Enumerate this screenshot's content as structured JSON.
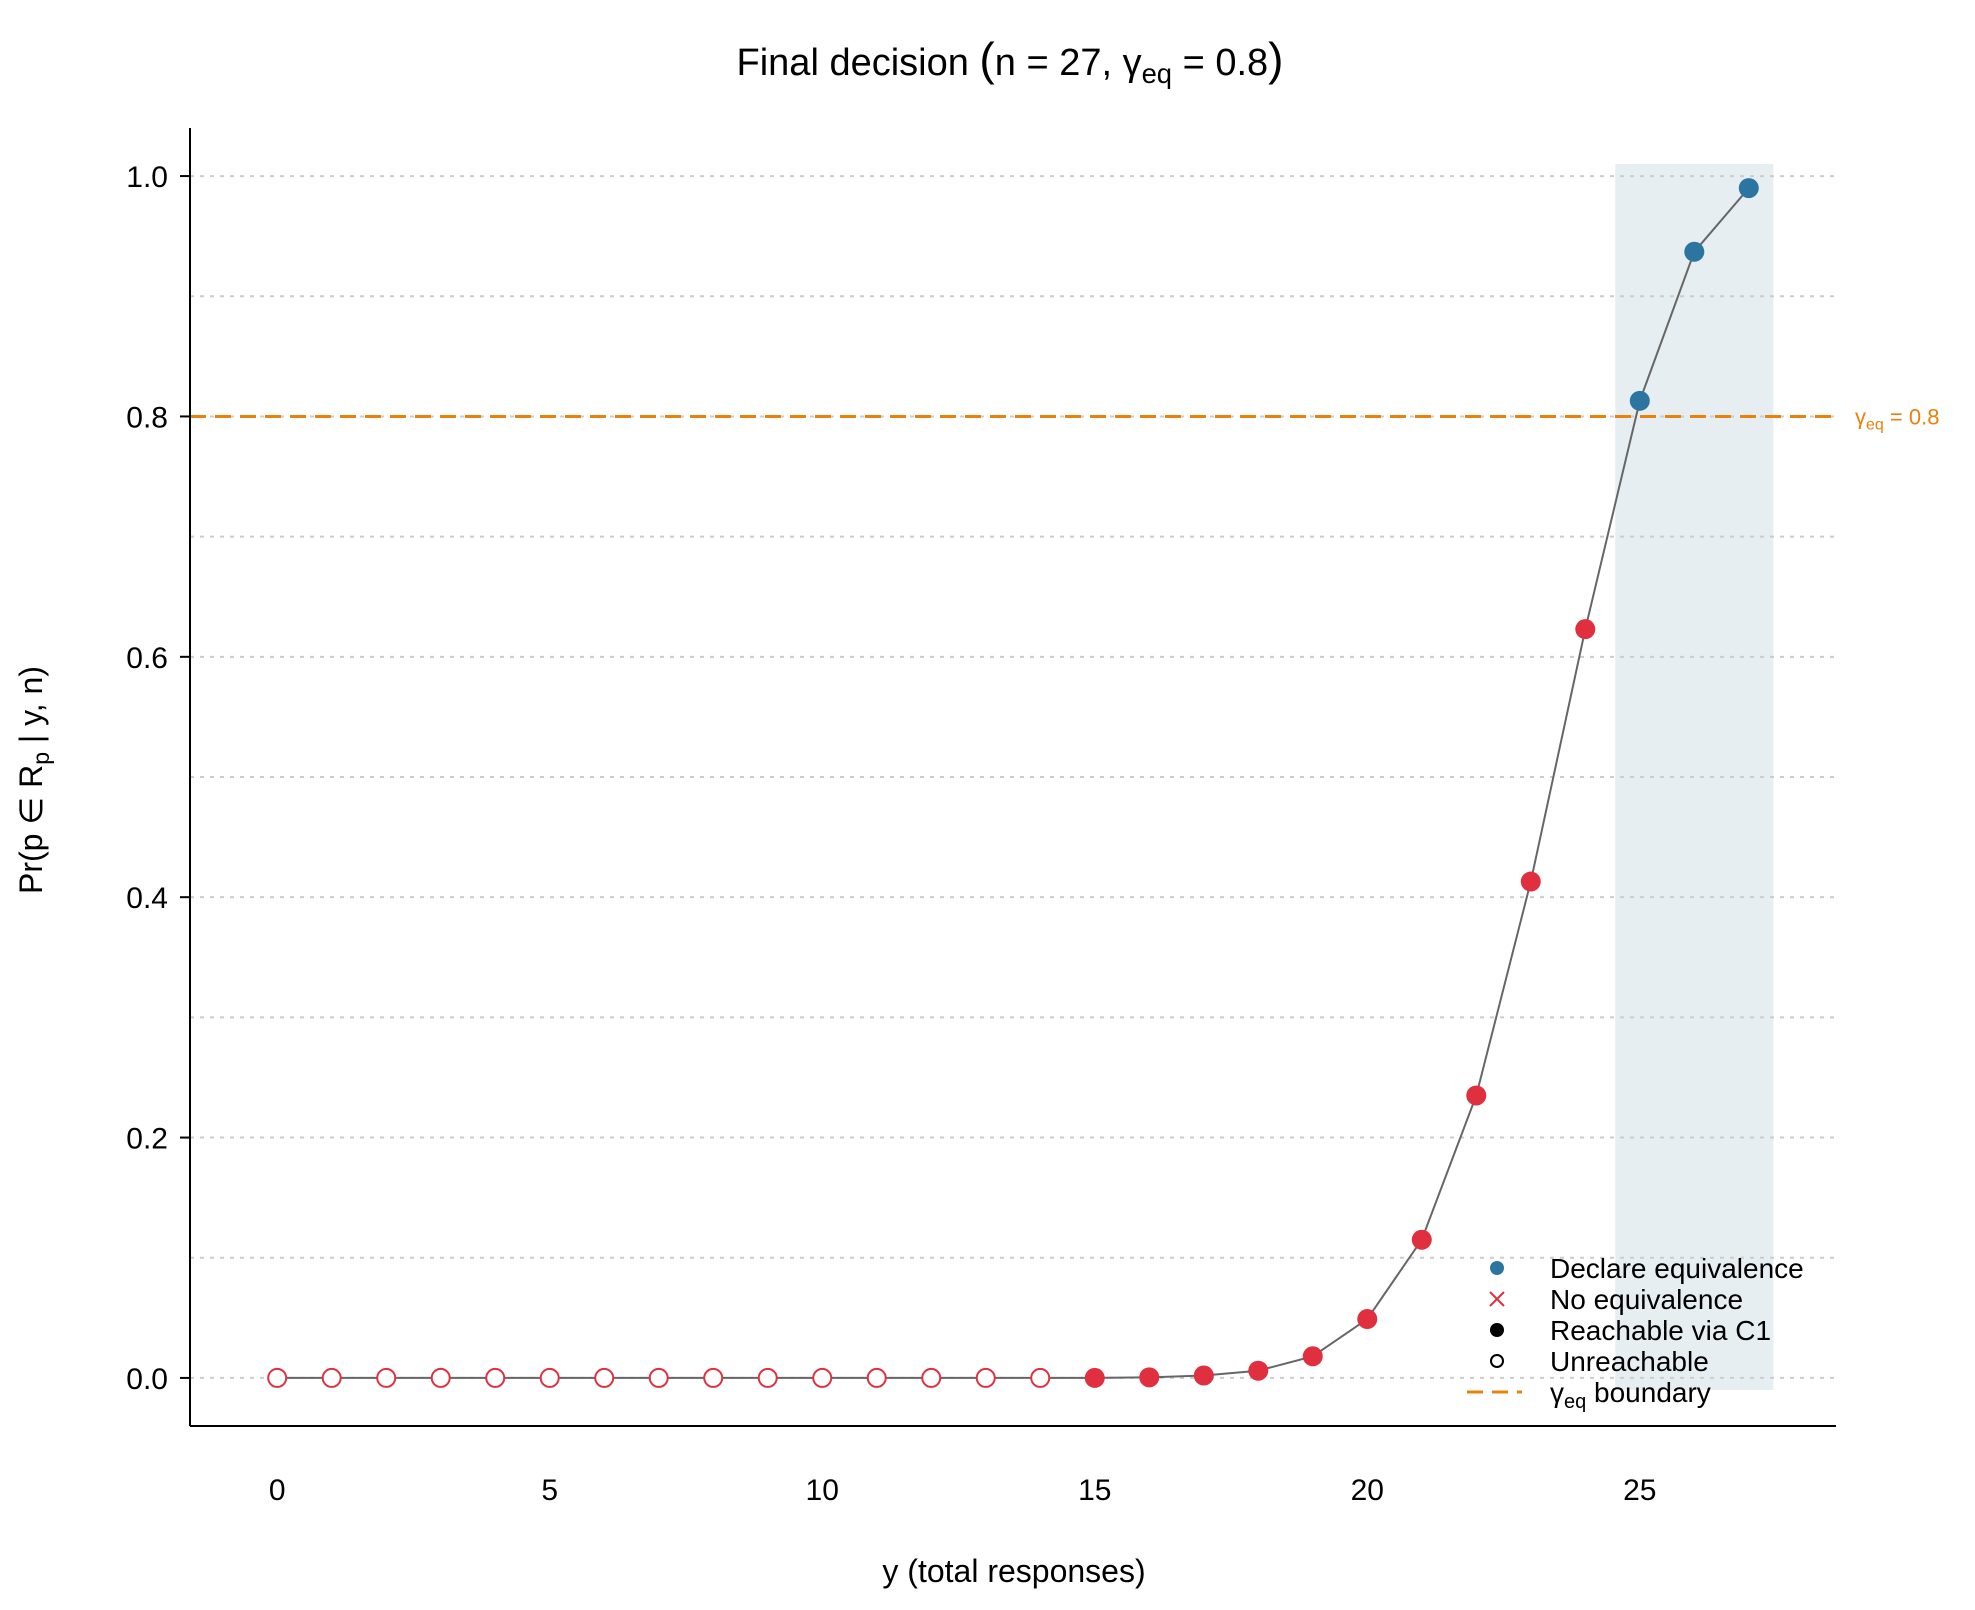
{
  "chart_data": {
    "type": "scatter",
    "title": {
      "prefix": "Final decision ",
      "n_text": "n = 27, ",
      "gamma": "γ",
      "gamma_sub": "eq",
      "gamma_value": " = 0.8"
    },
    "xlabel": "y (total responses)",
    "ylabel": {
      "pre": "Pr(p ∈ R",
      "sub": "p",
      "post": " | y, n)"
    },
    "xlim": [
      -1.6,
      28.6
    ],
    "ylim": [
      -0.04,
      1.04
    ],
    "x_ticks": [
      0,
      5,
      10,
      15,
      20,
      25
    ],
    "x_tick_labels": [
      "0",
      "5",
      "10",
      "15",
      "20",
      "25"
    ],
    "y_ticks": [
      0.0,
      0.2,
      0.4,
      0.6,
      0.8,
      1.0
    ],
    "y_tick_labels": [
      "0.0",
      "0.2",
      "0.4",
      "0.6",
      "0.8",
      "1.0"
    ],
    "y_minor_gridlines": [
      0.1,
      0.3,
      0.5,
      0.7,
      0.9
    ],
    "grid": "horizontal dotted",
    "threshold": {
      "value": 0.8,
      "label_gamma": "γ",
      "label_sub": "eq",
      "label_value": " = 0.8",
      "color": "#E8820C"
    },
    "shaded_region": {
      "x_from": 24.55,
      "x_to": 27.45,
      "y_from": -0.01,
      "y_to": 1.01,
      "color": "#E6EEF2"
    },
    "points": [
      {
        "x": 0,
        "y": 0.0,
        "decision": "no_equivalence",
        "reachable": false
      },
      {
        "x": 1,
        "y": 0.0,
        "decision": "no_equivalence",
        "reachable": false
      },
      {
        "x": 2,
        "y": 0.0,
        "decision": "no_equivalence",
        "reachable": false
      },
      {
        "x": 3,
        "y": 0.0,
        "decision": "no_equivalence",
        "reachable": false
      },
      {
        "x": 4,
        "y": 0.0,
        "decision": "no_equivalence",
        "reachable": false
      },
      {
        "x": 5,
        "y": 0.0,
        "decision": "no_equivalence",
        "reachable": false
      },
      {
        "x": 6,
        "y": 0.0,
        "decision": "no_equivalence",
        "reachable": false
      },
      {
        "x": 7,
        "y": 0.0,
        "decision": "no_equivalence",
        "reachable": false
      },
      {
        "x": 8,
        "y": 0.0,
        "decision": "no_equivalence",
        "reachable": false
      },
      {
        "x": 9,
        "y": 0.0,
        "decision": "no_equivalence",
        "reachable": false
      },
      {
        "x": 10,
        "y": 0.0,
        "decision": "no_equivalence",
        "reachable": false
      },
      {
        "x": 11,
        "y": 0.0,
        "decision": "no_equivalence",
        "reachable": false
      },
      {
        "x": 12,
        "y": 0.0,
        "decision": "no_equivalence",
        "reachable": false
      },
      {
        "x": 13,
        "y": 0.0,
        "decision": "no_equivalence",
        "reachable": false
      },
      {
        "x": 14,
        "y": 0.0,
        "decision": "no_equivalence",
        "reachable": false
      },
      {
        "x": 15,
        "y": 0.0,
        "decision": "no_equivalence",
        "reachable": true
      },
      {
        "x": 16,
        "y": 0.0005,
        "decision": "no_equivalence",
        "reachable": true
      },
      {
        "x": 17,
        "y": 0.002,
        "decision": "no_equivalence",
        "reachable": true
      },
      {
        "x": 18,
        "y": 0.006,
        "decision": "no_equivalence",
        "reachable": true
      },
      {
        "x": 19,
        "y": 0.018,
        "decision": "no_equivalence",
        "reachable": true
      },
      {
        "x": 20,
        "y": 0.049,
        "decision": "no_equivalence",
        "reachable": true
      },
      {
        "x": 21,
        "y": 0.115,
        "decision": "no_equivalence",
        "reachable": true
      },
      {
        "x": 22,
        "y": 0.235,
        "decision": "no_equivalence",
        "reachable": true
      },
      {
        "x": 23,
        "y": 0.413,
        "decision": "no_equivalence",
        "reachable": true
      },
      {
        "x": 24,
        "y": 0.623,
        "decision": "no_equivalence",
        "reachable": true
      },
      {
        "x": 25,
        "y": 0.813,
        "decision": "declare_equivalence",
        "reachable": true
      },
      {
        "x": 26,
        "y": 0.937,
        "decision": "declare_equivalence",
        "reachable": true
      },
      {
        "x": 27,
        "y": 0.99,
        "decision": "declare_equivalence",
        "reachable": true
      }
    ],
    "colors": {
      "declare_equivalence": "#2C75A0",
      "no_equivalence": "#E03040",
      "line": "#666666",
      "axis": "#000000",
      "grid": "#CCCCCC"
    },
    "legend": {
      "placement": "bottom-right",
      "entries": [
        {
          "key": "declare",
          "label": "Declare equivalence"
        },
        {
          "key": "no",
          "label": "No equivalence"
        },
        {
          "key": "reachable",
          "label": "Reachable via C1"
        },
        {
          "key": "unreachable",
          "label": "Unreachable"
        },
        {
          "key": "boundary",
          "label_gamma": "γ",
          "label_sub": "eq",
          "label_rest": " boundary"
        }
      ]
    }
  }
}
